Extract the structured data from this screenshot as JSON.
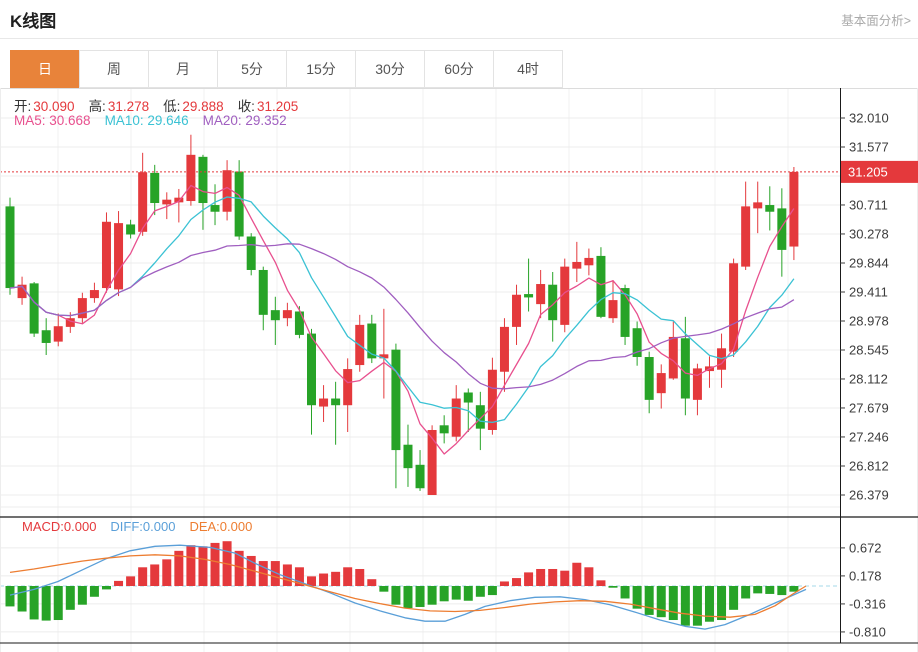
{
  "header": {
    "title": "K线图",
    "link": "基本面分析>"
  },
  "tabs": {
    "items": [
      "日",
      "周",
      "月",
      "5分",
      "15分",
      "30分",
      "60分",
      "4时"
    ],
    "active": "日"
  },
  "legend": {
    "ohlc": [
      {
        "label": "开:",
        "value": "30.090"
      },
      {
        "label": "高:",
        "value": "31.278"
      },
      {
        "label": "低:",
        "value": "29.888"
      },
      {
        "label": "收:",
        "value": "31.205"
      }
    ],
    "ma": [
      {
        "text": "MA5: 30.668",
        "color": "#e8508e"
      },
      {
        "text": "MA10: 29.646",
        "color": "#3bc2d4"
      },
      {
        "text": "MA20: 29.352",
        "color": "#a05fc0"
      }
    ],
    "macd": [
      {
        "text": "MACD:0.000",
        "color": "#e4393c"
      },
      {
        "text": "DIFF:0.000",
        "color": "#5a9fd8"
      },
      {
        "text": "DEA:0.000",
        "color": "#ed7d31"
      }
    ]
  },
  "colors": {
    "up": "#e4393c",
    "down": "#27a327",
    "grid": "#ececec",
    "vgrid": "#f0f0f0",
    "axis": "#1a1a1a",
    "tick_text": "#3c3c3c",
    "price_line": "#e4393c",
    "price_tag_bg": "#e4393c",
    "price_tag_text": "#ffffff",
    "zero_line": "#a6d9e8",
    "active_tab": "#e8833a",
    "diff": "#5a9fd8",
    "dea": "#ed7d31",
    "ma5": "#e8508e",
    "ma10": "#3bc2d4",
    "ma20": "#a05fc0",
    "border_light": "#dcdcdc"
  },
  "chart_data": {
    "type": "candlestick",
    "title": "K线图",
    "legend_position": "top-left",
    "grid": true,
    "main": {
      "y_ticks": [
        32.01,
        31.577,
        30.711,
        30.278,
        29.844,
        29.411,
        28.978,
        28.545,
        28.112,
        27.679,
        27.246,
        26.812,
        26.379
      ],
      "y_range": [
        26.379,
        32.01
      ],
      "price_marker": {
        "value": 31.205,
        "label": "31.205"
      },
      "ma_periods": [
        5,
        10,
        20
      ],
      "last_ohlc": {
        "open": 30.09,
        "high": 31.278,
        "low": 29.888,
        "close": 31.205
      },
      "ohlc": [
        [
          30.69,
          30.82,
          29.37,
          29.47
        ],
        [
          29.32,
          29.64,
          29.22,
          29.52
        ],
        [
          29.54,
          29.56,
          28.74,
          28.79
        ],
        [
          28.84,
          29.02,
          28.47,
          28.65
        ],
        [
          28.67,
          29.09,
          28.6,
          28.9
        ],
        [
          28.89,
          29.11,
          28.8,
          29.02
        ],
        [
          29.02,
          29.4,
          28.95,
          29.32
        ],
        [
          29.32,
          29.55,
          29.25,
          29.44
        ],
        [
          29.47,
          30.6,
          29.4,
          30.46
        ],
        [
          29.45,
          30.62,
          29.35,
          30.44
        ],
        [
          30.42,
          30.49,
          30.21,
          30.27
        ],
        [
          30.31,
          31.49,
          30.25,
          31.2
        ],
        [
          31.19,
          31.31,
          30.56,
          30.74
        ],
        [
          30.72,
          30.9,
          30.5,
          30.79
        ],
        [
          30.75,
          30.95,
          30.45,
          30.82
        ],
        [
          30.77,
          31.76,
          30.7,
          31.46
        ],
        [
          31.43,
          31.46,
          30.34,
          30.74
        ],
        [
          30.71,
          31.02,
          30.41,
          30.61
        ],
        [
          30.61,
          31.38,
          30.48,
          31.23
        ],
        [
          31.21,
          31.38,
          30.19,
          30.24
        ],
        [
          30.24,
          30.29,
          29.66,
          29.74
        ],
        [
          29.74,
          29.79,
          28.84,
          29.07
        ],
        [
          29.14,
          29.34,
          28.62,
          28.99
        ],
        [
          29.02,
          29.25,
          28.9,
          29.14
        ],
        [
          29.12,
          29.2,
          28.72,
          28.77
        ],
        [
          28.79,
          28.86,
          27.28,
          27.72
        ],
        [
          27.7,
          28.02,
          27.47,
          27.82
        ],
        [
          27.82,
          28.07,
          27.13,
          27.72
        ],
        [
          27.72,
          28.42,
          27.32,
          28.26
        ],
        [
          28.32,
          29.07,
          28.22,
          28.92
        ],
        [
          28.94,
          29.07,
          28.35,
          28.42
        ],
        [
          28.42,
          29.16,
          27.82,
          28.48
        ],
        [
          28.55,
          28.64,
          26.48,
          27.05
        ],
        [
          27.13,
          27.43,
          26.5,
          26.78
        ],
        [
          26.83,
          27.05,
          26.44,
          26.48
        ],
        [
          26.379,
          27.42,
          26.379,
          27.35
        ],
        [
          27.42,
          27.57,
          27.15,
          27.3
        ],
        [
          27.25,
          28.02,
          27.18,
          27.82
        ],
        [
          27.91,
          27.97,
          27.32,
          27.76
        ],
        [
          27.72,
          27.92,
          27.05,
          27.37
        ],
        [
          27.35,
          28.43,
          27.28,
          28.25
        ],
        [
          28.22,
          29.02,
          27.92,
          28.89
        ],
        [
          28.89,
          29.52,
          28.62,
          29.37
        ],
        [
          29.38,
          29.91,
          29.12,
          29.33
        ],
        [
          29.23,
          29.74,
          29.02,
          29.53
        ],
        [
          29.52,
          29.71,
          28.67,
          28.99
        ],
        [
          28.92,
          29.91,
          28.81,
          29.79
        ],
        [
          29.76,
          30.16,
          29.56,
          29.86
        ],
        [
          29.81,
          30.06,
          29.66,
          29.92
        ],
        [
          29.95,
          30.08,
          29.02,
          29.04
        ],
        [
          29.02,
          29.59,
          28.95,
          29.29
        ],
        [
          29.47,
          29.52,
          28.62,
          28.74
        ],
        [
          28.87,
          28.97,
          28.31,
          28.44
        ],
        [
          28.44,
          28.52,
          27.6,
          27.8
        ],
        [
          27.9,
          28.33,
          27.67,
          28.2
        ],
        [
          28.12,
          28.97,
          28.1,
          28.74
        ],
        [
          28.72,
          29.04,
          27.57,
          27.82
        ],
        [
          27.8,
          28.34,
          27.57,
          28.27
        ],
        [
          28.23,
          28.45,
          27.98,
          28.3
        ],
        [
          28.25,
          28.79,
          27.98,
          28.57
        ],
        [
          28.52,
          29.91,
          28.44,
          29.84
        ],
        [
          29.79,
          31.06,
          29.74,
          30.69
        ],
        [
          30.66,
          31.06,
          30.29,
          30.75
        ],
        [
          30.71,
          30.99,
          30.33,
          30.61
        ],
        [
          30.66,
          30.96,
          29.64,
          30.04
        ],
        [
          30.09,
          31.278,
          29.888,
          31.205
        ]
      ]
    },
    "macd": {
      "y_ticks": [
        0.672,
        0.178,
        -0.316,
        -0.81
      ],
      "zero": 0,
      "hist": [
        -0.36,
        -0.45,
        -0.59,
        -0.61,
        -0.6,
        -0.42,
        -0.33,
        -0.19,
        -0.06,
        0.09,
        0.17,
        0.33,
        0.38,
        0.47,
        0.62,
        0.72,
        0.7,
        0.76,
        0.79,
        0.62,
        0.53,
        0.44,
        0.44,
        0.38,
        0.33,
        0.17,
        0.22,
        0.25,
        0.33,
        0.3,
        0.12,
        -0.1,
        -0.33,
        -0.39,
        -0.37,
        -0.33,
        -0.27,
        -0.24,
        -0.26,
        -0.19,
        -0.16,
        0.08,
        0.14,
        0.24,
        0.3,
        0.3,
        0.27,
        0.41,
        0.33,
        0.1,
        -0.03,
        -0.22,
        -0.4,
        -0.51,
        -0.55,
        -0.6,
        -0.7,
        -0.7,
        -0.63,
        -0.6,
        -0.42,
        -0.22,
        -0.13,
        -0.14,
        -0.16,
        -0.1
      ],
      "diff": [
        [
          10,
          -0.16
        ],
        [
          34,
          -0.06
        ],
        [
          58,
          0.08
        ],
        [
          82,
          0.28
        ],
        [
          106,
          0.48
        ],
        [
          130,
          0.62
        ],
        [
          155,
          0.7
        ],
        [
          180,
          0.72
        ],
        [
          210,
          0.68
        ],
        [
          235,
          0.58
        ],
        [
          255,
          0.4
        ],
        [
          280,
          0.2
        ],
        [
          305,
          0.04
        ],
        [
          330,
          -0.12
        ],
        [
          355,
          -0.3
        ],
        [
          380,
          -0.44
        ],
        [
          405,
          -0.56
        ],
        [
          425,
          -0.62
        ],
        [
          445,
          -0.62
        ],
        [
          465,
          -0.5
        ],
        [
          485,
          -0.36
        ],
        [
          510,
          -0.26
        ],
        [
          535,
          -0.2
        ],
        [
          560,
          -0.19
        ],
        [
          585,
          -0.24
        ],
        [
          610,
          -0.33
        ],
        [
          635,
          -0.46
        ],
        [
          660,
          -0.6
        ],
        [
          685,
          -0.71
        ],
        [
          705,
          -0.76
        ],
        [
          725,
          -0.68
        ],
        [
          750,
          -0.5
        ],
        [
          775,
          -0.3
        ],
        [
          792,
          -0.17
        ],
        [
          806,
          -0.06
        ]
      ],
      "dea": [
        [
          10,
          0.24
        ],
        [
          34,
          0.3
        ],
        [
          58,
          0.37
        ],
        [
          82,
          0.44
        ],
        [
          106,
          0.49
        ],
        [
          130,
          0.53
        ],
        [
          155,
          0.55
        ],
        [
          180,
          0.53
        ],
        [
          205,
          0.47
        ],
        [
          230,
          0.38
        ],
        [
          255,
          0.26
        ],
        [
          280,
          0.14
        ],
        [
          305,
          0.02
        ],
        [
          330,
          -0.1
        ],
        [
          355,
          -0.22
        ],
        [
          380,
          -0.31
        ],
        [
          405,
          -0.39
        ],
        [
          430,
          -0.44
        ],
        [
          455,
          -0.45
        ],
        [
          480,
          -0.43
        ],
        [
          505,
          -0.38
        ],
        [
          530,
          -0.32
        ],
        [
          555,
          -0.28
        ],
        [
          580,
          -0.26
        ],
        [
          605,
          -0.27
        ],
        [
          630,
          -0.32
        ],
        [
          655,
          -0.4
        ],
        [
          680,
          -0.48
        ],
        [
          705,
          -0.53
        ],
        [
          730,
          -0.55
        ],
        [
          755,
          -0.5
        ],
        [
          775,
          -0.35
        ],
        [
          792,
          -0.15
        ],
        [
          806,
          0.0
        ]
      ]
    }
  }
}
